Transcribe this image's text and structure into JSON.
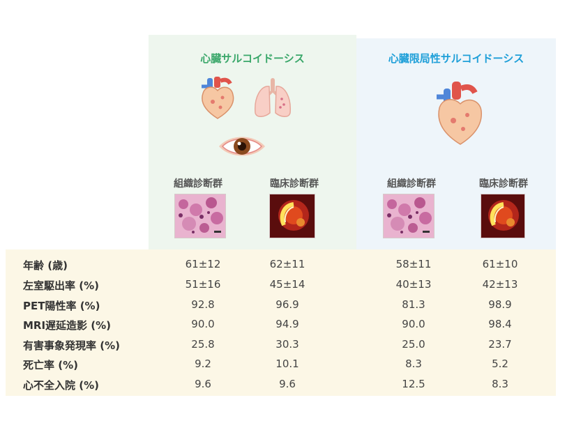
{
  "colors": {
    "left_title": "#3aa76a",
    "right_title": "#1e9fd8",
    "left_panel": "#eef6ee",
    "right_panel": "#eef5fa",
    "table_bg": "#fcf7e6"
  },
  "panels": {
    "left": {
      "title": "心臓サルコイドーシス",
      "groups": [
        "組織診断群",
        "臨床診断群"
      ]
    },
    "right": {
      "title": "心臓限局性サルコイドーシス",
      "groups": [
        "組織診断群",
        "臨床診断群"
      ]
    }
  },
  "icons": [
    "heart-icon",
    "lungs-icon",
    "eye-icon",
    "histology-image",
    "pet-scan-image"
  ],
  "table": {
    "rows": [
      {
        "label": "年齢 (歳)",
        "values": [
          "61±12",
          "62±11",
          "58±11",
          "61±10"
        ]
      },
      {
        "label": "左室駆出率 (%)",
        "values": [
          "51±16",
          "45±14",
          "40±13",
          "42±13"
        ]
      },
      {
        "label": "PET陽性率 (%)",
        "values": [
          "92.8",
          "96.9",
          "81.3",
          "98.9"
        ]
      },
      {
        "label": "MRI遅延造影 (%)",
        "values": [
          "90.0",
          "94.9",
          "90.0",
          "98.4"
        ]
      },
      {
        "label": "有害事象発現率 (%)",
        "values": [
          "25.8",
          "30.3",
          "25.0",
          "23.7"
        ]
      },
      {
        "label": "死亡率 (%)",
        "values": [
          "9.2",
          "10.1",
          "8.3",
          "5.2"
        ]
      },
      {
        "label": "心不全入院 (%)",
        "values": [
          "9.6",
          "9.6",
          "12.5",
          "8.3"
        ]
      }
    ]
  }
}
